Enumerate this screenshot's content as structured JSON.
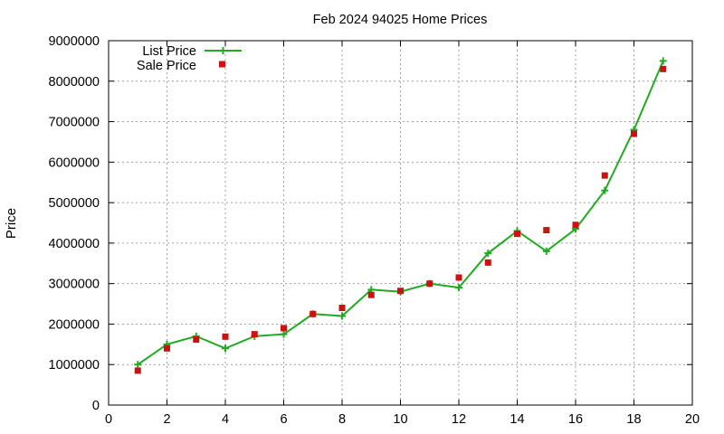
{
  "chart_data": {
    "type": "line",
    "title": "Feb 2024 94025 Home Prices",
    "xlabel": "",
    "ylabel": "Price",
    "xlim": [
      0,
      20
    ],
    "ylim": [
      0,
      9000000
    ],
    "xticks": [
      0,
      2,
      4,
      6,
      8,
      10,
      12,
      14,
      16,
      18,
      20
    ],
    "yticks": [
      0,
      1000000,
      2000000,
      3000000,
      4000000,
      5000000,
      6000000,
      7000000,
      8000000,
      9000000
    ],
    "xtick_labels": [
      "0",
      "2",
      "4",
      "6",
      "8",
      "10",
      "12",
      "14",
      "16",
      "18",
      "20"
    ],
    "ytick_labels": [
      "0",
      "1000000",
      "2000000",
      "3000000",
      "4000000",
      "5000000",
      "6000000",
      "7000000",
      "8000000",
      "9000000"
    ],
    "grid": true,
    "legend_position": "top-left",
    "series": [
      {
        "name": "List Price",
        "style": "linespoints",
        "marker": "plus",
        "color": "#22aa22",
        "x": [
          1,
          2,
          3,
          4,
          5,
          6,
          7,
          8,
          9,
          10,
          11,
          12,
          13,
          14,
          15,
          16,
          17,
          18,
          19
        ],
        "y": [
          1000000,
          1500000,
          1700000,
          1400000,
          1700000,
          1750000,
          2250000,
          2200000,
          2850000,
          2800000,
          3000000,
          2900000,
          3750000,
          4300000,
          3800000,
          4350000,
          5300000,
          6800000,
          8500000
        ]
      },
      {
        "name": "Sale Price",
        "style": "points",
        "marker": "square",
        "color": "#cc1111",
        "x": [
          1,
          2,
          3,
          4,
          5,
          6,
          7,
          8,
          9,
          10,
          11,
          12,
          13,
          14,
          15,
          16,
          17,
          18,
          19
        ],
        "y": [
          850000,
          1400000,
          1620000,
          1690000,
          1750000,
          1900000,
          2250000,
          2400000,
          2720000,
          2820000,
          3000000,
          3150000,
          3520000,
          4230000,
          4320000,
          4450000,
          5670000,
          6700000,
          8300000
        ]
      }
    ]
  }
}
